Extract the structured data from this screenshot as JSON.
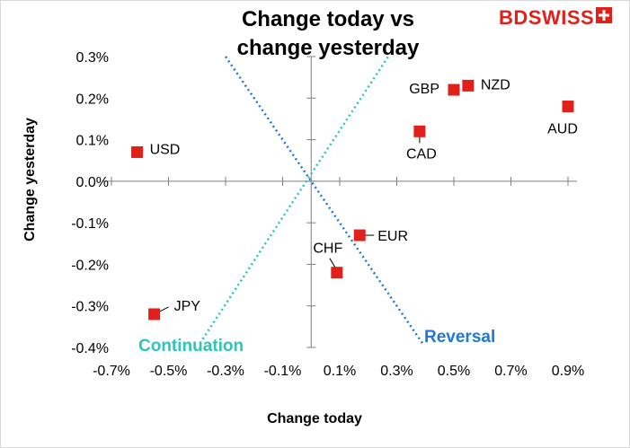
{
  "chart_data": {
    "type": "scatter",
    "title": "Change today vs\nchange yesterday",
    "xlabel": "Change today",
    "ylabel": "Change yesterday",
    "xlim": [
      -0.7,
      0.9
    ],
    "ylim": [
      -0.4,
      0.3
    ],
    "x_ticks": [
      "-0.7%",
      "-0.5%",
      "-0.3%",
      "-0.1%",
      "0.1%",
      "0.3%",
      "0.5%",
      "0.7%",
      "0.9%"
    ],
    "x_tick_values": [
      -0.7,
      -0.5,
      -0.3,
      -0.1,
      0.1,
      0.3,
      0.5,
      0.7,
      0.9
    ],
    "y_ticks": [
      "0.3%",
      "0.2%",
      "0.1%",
      "0.0%",
      "-0.1%",
      "-0.2%",
      "-0.3%",
      "-0.4%"
    ],
    "y_tick_values": [
      0.3,
      0.2,
      0.1,
      0.0,
      -0.1,
      -0.2,
      -0.3,
      -0.4
    ],
    "grid": false,
    "marker_color": "#e0201b",
    "points": [
      {
        "label": "USD",
        "x": -0.61,
        "y": 0.07
      },
      {
        "label": "JPY",
        "x": -0.55,
        "y": -0.32
      },
      {
        "label": "GBP",
        "x": 0.5,
        "y": 0.22
      },
      {
        "label": "NZD",
        "x": 0.55,
        "y": 0.23
      },
      {
        "label": "AUD",
        "x": 0.9,
        "y": 0.18
      },
      {
        "label": "CAD",
        "x": 0.38,
        "y": 0.12
      },
      {
        "label": "EUR",
        "x": 0.17,
        "y": -0.13
      },
      {
        "label": "CHF",
        "x": 0.09,
        "y": -0.22
      }
    ],
    "reference_lines": [
      {
        "label": "Continuation",
        "color": "#2ec4b6",
        "from": [
          -0.39,
          -0.39
        ],
        "to": [
          0.27,
          0.3
        ]
      },
      {
        "label": "Reversal",
        "color": "#1f78d1",
        "from": [
          -0.3,
          0.3
        ],
        "to": [
          0.39,
          -0.39
        ]
      }
    ]
  },
  "logo": {
    "text": "BDSWISS"
  }
}
